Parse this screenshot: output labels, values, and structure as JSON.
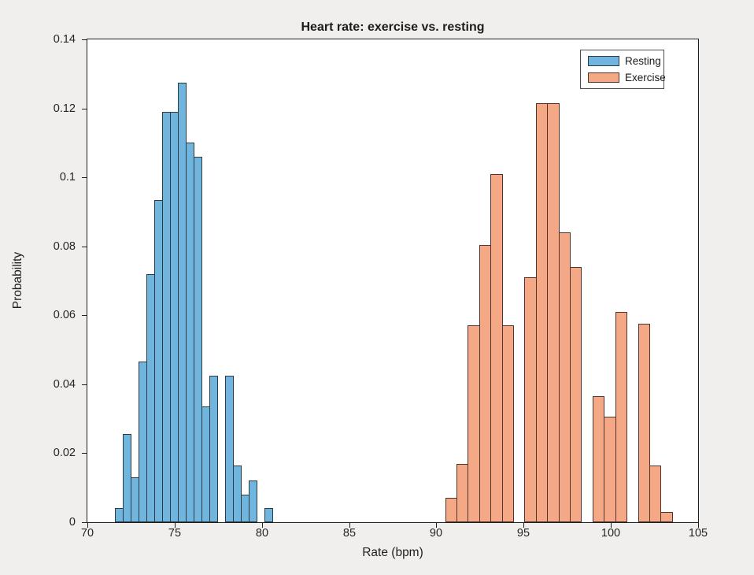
{
  "figure": {
    "title": "Heart rate: exercise vs. resting",
    "background_color": "#f0efed",
    "plot_background_color": "#ffffff",
    "axis_color": "#1f1f1f"
  },
  "axes": {
    "x": {
      "label": "Rate (bpm)",
      "min": 70,
      "max": 105,
      "tick_values": [
        70,
        75,
        80,
        85,
        90,
        95,
        100,
        105
      ],
      "tick_labels": [
        "70",
        "75",
        "80",
        "85",
        "90",
        "95",
        "100",
        "105"
      ]
    },
    "y": {
      "label": "Probability",
      "min": 0,
      "max": 0.14,
      "tick_values": [
        0,
        0.02,
        0.04,
        0.06,
        0.08,
        0.1,
        0.12,
        0.14
      ],
      "tick_labels": [
        "0",
        "0.02",
        "0.04",
        "0.06",
        "0.08",
        "0.1",
        "0.12",
        "0.14"
      ]
    }
  },
  "legend": {
    "position": "northeast",
    "items": [
      {
        "label": "Resting",
        "color": "#6fb5de",
        "edge_color": "#2c3a42"
      },
      {
        "label": "Exercise",
        "color": "#f5a886",
        "edge_color": "#4e342a"
      }
    ]
  },
  "chart_data": {
    "type": "bar",
    "subtype": "histogram-probability",
    "title": "Heart rate: exercise vs. resting",
    "xlabel": "Rate (bpm)",
    "ylabel": "Probability",
    "xlim": [
      70,
      105
    ],
    "ylim": [
      0,
      0.14
    ],
    "grid": false,
    "legend_position": "northeast",
    "series": [
      {
        "name": "Resting",
        "color": "#6fb5de",
        "edge_color": "#2c3a42",
        "bin_start": 71.6,
        "bin_width": 0.45,
        "probabilities": [
          0.004,
          0.0255,
          0.013,
          0.0465,
          0.072,
          0.0935,
          0.119,
          0.119,
          0.1275,
          0.11,
          0.106,
          0.0335,
          0.0425,
          0,
          0.0425,
          0.0165,
          0.008,
          0.012,
          0,
          0.004
        ]
      },
      {
        "name": "Exercise",
        "color": "#f5a886",
        "edge_color": "#4e342a",
        "bin_start": 90.5,
        "bin_width": 0.65,
        "probabilities": [
          0.007,
          0.017,
          0.057,
          0.0805,
          0.101,
          0.057,
          0,
          0.071,
          0.1215,
          0.1215,
          0.084,
          0.074,
          0,
          0.0365,
          0.0305,
          0.061,
          0,
          0.0575,
          0.0165,
          0.003
        ]
      }
    ]
  }
}
